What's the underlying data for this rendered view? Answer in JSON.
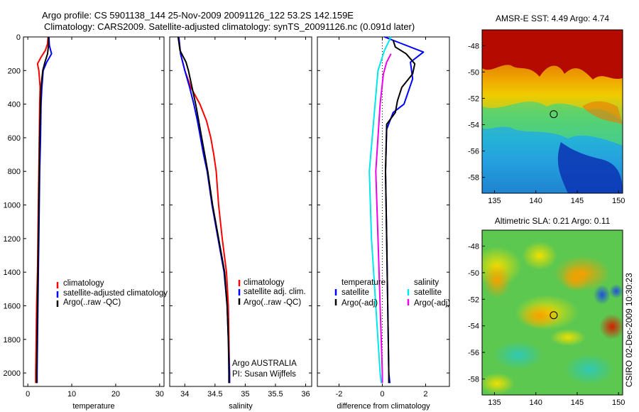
{
  "header": {
    "line1": "Argo profile: CS 5901138_144 25-Nov-2009 20091126_122 53.2S 142.159E",
    "line2": "Climatology: CARS2009. Satellite-adjusted climatology: synTS_20091126.nc (0.091d later)"
  },
  "colors": {
    "climatology": "#ff0000",
    "satellite": "#0000ff",
    "argo": "#000000",
    "sat_salinity": "#00e5ee",
    "argo_salinity": "#ee00ee"
  },
  "chart_data": [
    {
      "id": "temperature",
      "type": "line",
      "xlabel": "temperature",
      "ylabel": "",
      "xlim": [
        -1,
        31
      ],
      "ylim": [
        2080,
        0
      ],
      "xticks": [
        0,
        10,
        20,
        30
      ],
      "yticks": [
        0,
        200,
        400,
        600,
        800,
        1000,
        1200,
        1400,
        1600,
        1800,
        2000
      ],
      "legend": {
        "placement": "lower-right",
        "entries": [
          "climatology",
          "satellite-adjusted climatology",
          "Argo(..raw -QC)"
        ]
      },
      "series": [
        {
          "name": "climatology",
          "color": "#ff0000",
          "points": [
            [
              4.6,
              0
            ],
            [
              4.5,
              40
            ],
            [
              4.0,
              80
            ],
            [
              3.0,
              120
            ],
            [
              2.2,
              160
            ],
            [
              2.5,
              200
            ],
            [
              2.8,
              300
            ],
            [
              2.7,
              400
            ],
            [
              2.6,
              600
            ],
            [
              2.5,
              800
            ],
            [
              2.4,
              1000
            ],
            [
              2.3,
              1200
            ],
            [
              2.2,
              1400
            ],
            [
              2.0,
              1600
            ],
            [
              1.9,
              1800
            ],
            [
              1.8,
              2000
            ],
            [
              1.8,
              2060
            ]
          ]
        },
        {
          "name": "satellite-adjusted climatology",
          "color": "#0000ff",
          "points": [
            [
              4.8,
              0
            ],
            [
              4.9,
              50
            ],
            [
              5.4,
              100
            ],
            [
              4.3,
              150
            ],
            [
              3.5,
              200
            ],
            [
              3.2,
              300
            ],
            [
              3.0,
              400
            ],
            [
              2.9,
              600
            ],
            [
              2.7,
              800
            ],
            [
              2.6,
              1000
            ],
            [
              2.5,
              1200
            ],
            [
              2.4,
              1400
            ],
            [
              2.3,
              1600
            ],
            [
              2.2,
              1800
            ],
            [
              2.1,
              2000
            ],
            [
              2.1,
              2060
            ]
          ]
        },
        {
          "name": "Argo(..raw -QC)",
          "color": "#000000",
          "points": [
            [
              4.7,
              0
            ],
            [
              4.7,
              50
            ],
            [
              4.5,
              100
            ],
            [
              3.9,
              150
            ],
            [
              3.4,
              200
            ],
            [
              3.0,
              300
            ],
            [
              2.9,
              400
            ],
            [
              2.7,
              600
            ],
            [
              2.6,
              800
            ],
            [
              2.5,
              1000
            ],
            [
              2.4,
              1200
            ],
            [
              2.3,
              1400
            ],
            [
              2.2,
              1600
            ],
            [
              2.1,
              1800
            ],
            [
              2.0,
              2000
            ],
            [
              2.0,
              2060
            ]
          ]
        }
      ]
    },
    {
      "id": "salinity",
      "type": "line",
      "xlabel": "salinity",
      "ylabel": "",
      "xlim": [
        33.75,
        36.1
      ],
      "ylim": [
        2080,
        0
      ],
      "xticks": [
        34,
        34.5,
        35,
        35.5,
        36
      ],
      "yticks": [
        0,
        200,
        400,
        600,
        800,
        1000,
        1200,
        1400,
        1600,
        1800,
        2000
      ],
      "legend": {
        "placement": "lower-right",
        "entries": [
          "climatology",
          "satellite adj. clim.",
          "Argo(..raw -QC)"
        ]
      },
      "annotations": [
        "Argo AUSTRALIA",
        "PI: Susan Wijffels"
      ],
      "series": [
        {
          "name": "climatology",
          "color": "#ff0000",
          "points": [
            [
              33.9,
              0
            ],
            [
              33.93,
              100
            ],
            [
              34.0,
              200
            ],
            [
              34.1,
              300
            ],
            [
              34.25,
              400
            ],
            [
              34.36,
              500
            ],
            [
              34.43,
              600
            ],
            [
              34.48,
              700
            ],
            [
              34.52,
              800
            ],
            [
              34.56,
              1000
            ],
            [
              34.62,
              1200
            ],
            [
              34.69,
              1400
            ],
            [
              34.72,
              1600
            ],
            [
              34.73,
              1800
            ],
            [
              34.74,
              2000
            ],
            [
              34.74,
              2060
            ]
          ]
        },
        {
          "name": "satellite adj. clim.",
          "color": "#0000ff",
          "points": [
            [
              33.9,
              0
            ],
            [
              33.93,
              100
            ],
            [
              34.0,
              200
            ],
            [
              34.08,
              300
            ],
            [
              34.15,
              400
            ],
            [
              34.21,
              500
            ],
            [
              34.26,
              600
            ],
            [
              34.31,
              700
            ],
            [
              34.37,
              800
            ],
            [
              34.45,
              1000
            ],
            [
              34.55,
              1200
            ],
            [
              34.65,
              1400
            ],
            [
              34.7,
              1600
            ],
            [
              34.72,
              1800
            ],
            [
              34.74,
              2000
            ],
            [
              34.74,
              2060
            ]
          ]
        },
        {
          "name": "Argo(..raw -QC)",
          "color": "#000000",
          "points": [
            [
              33.89,
              0
            ],
            [
              33.92,
              80
            ],
            [
              34.02,
              150
            ],
            [
              34.06,
              200
            ],
            [
              34.12,
              300
            ],
            [
              34.18,
              400
            ],
            [
              34.23,
              500
            ],
            [
              34.28,
              600
            ],
            [
              34.33,
              700
            ],
            [
              34.38,
              800
            ],
            [
              34.46,
              1000
            ],
            [
              34.56,
              1200
            ],
            [
              34.66,
              1400
            ],
            [
              34.7,
              1600
            ],
            [
              34.72,
              1800
            ],
            [
              34.73,
              2000
            ],
            [
              34.73,
              2060
            ]
          ]
        }
      ]
    },
    {
      "id": "difference",
      "type": "line",
      "xlabel": "difference from climatology",
      "ylabel": "",
      "xlim": [
        -3,
        3.1
      ],
      "ylim": [
        2080,
        0
      ],
      "xticks": [
        -2,
        0,
        2
      ],
      "yticks": [
        0,
        200,
        400,
        600,
        800,
        1000,
        1200,
        1400,
        1600,
        1800,
        2000
      ],
      "zero_line": "dotted",
      "legend": {
        "placement": "lower-center",
        "groups": [
          "temperature",
          "salinity"
        ],
        "entries": [
          "satellite",
          "Argo(-adj)",
          "satellite",
          "Argo(-adj)"
        ]
      },
      "series": [
        {
          "name": "temperature satellite",
          "color": "#0000ff",
          "points": [
            [
              0.1,
              0
            ],
            [
              0.9,
              40
            ],
            [
              1.9,
              90
            ],
            [
              1.3,
              150
            ],
            [
              1.4,
              250
            ],
            [
              1.0,
              400
            ],
            [
              0.5,
              450
            ],
            [
              0.2,
              550
            ],
            [
              0.15,
              800
            ],
            [
              0.2,
              1200
            ],
            [
              0.25,
              1600
            ],
            [
              0.3,
              2000
            ],
            [
              0.35,
              2060
            ]
          ]
        },
        {
          "name": "temperature Argo(-adj)",
          "color": "#000000",
          "points": [
            [
              0.5,
              20
            ],
            [
              0.6,
              60
            ],
            [
              1.1,
              100
            ],
            [
              1.5,
              160
            ],
            [
              1.4,
              220
            ],
            [
              0.9,
              300
            ],
            [
              0.7,
              380
            ],
            [
              0.6,
              450
            ],
            [
              0.2,
              520
            ],
            [
              0.15,
              800
            ],
            [
              0.2,
              1200
            ],
            [
              0.25,
              1600
            ],
            [
              0.3,
              2000
            ],
            [
              0.3,
              2060
            ]
          ]
        },
        {
          "name": "salinity satellite",
          "color": "#00e5ee",
          "points": [
            [
              0.4,
              0
            ],
            [
              0.1,
              80
            ],
            [
              -0.2,
              200
            ],
            [
              -0.3,
              350
            ],
            [
              -0.6,
              800
            ],
            [
              -0.5,
              1200
            ],
            [
              -0.3,
              1600
            ],
            [
              -0.1,
              2000
            ],
            [
              -0.05,
              2060
            ]
          ]
        },
        {
          "name": "salinity Argo(-adj)",
          "color": "#ee00ee",
          "points": [
            [
              0.4,
              100
            ],
            [
              0.2,
              150
            ],
            [
              0.05,
              220
            ],
            [
              -0.1,
              400
            ],
            [
              -0.3,
              800
            ],
            [
              -0.2,
              1200
            ],
            [
              -0.1,
              1600
            ],
            [
              0.0,
              2000
            ],
            [
              0.0,
              2060
            ]
          ]
        }
      ]
    }
  ],
  "maps": [
    {
      "id": "sst",
      "type": "heatmap",
      "title": "AMSR-E SST: 4.49  Argo: 4.74",
      "xticks": [
        135,
        140,
        145,
        150
      ],
      "yticks": [
        -48,
        -50,
        -52,
        -54,
        -56,
        -58
      ],
      "xlim": [
        133.5,
        150.5
      ],
      "ylim": [
        -59.2,
        -46.8
      ],
      "marker": {
        "lon": 142.159,
        "lat": -53.2
      }
    },
    {
      "id": "sla",
      "type": "heatmap",
      "title": "Altimetric SLA: 0.21  Argo: 0.11",
      "xticks": [
        135,
        140,
        145,
        150
      ],
      "yticks": [
        -48,
        -50,
        -52,
        -54,
        -56,
        -58
      ],
      "xlim": [
        133.5,
        150.5
      ],
      "ylim": [
        -59.2,
        -46.8
      ],
      "marker": {
        "lon": 142.159,
        "lat": -53.2
      }
    }
  ],
  "credit": "CSIRO  02-Dec-2009 10:30:23"
}
